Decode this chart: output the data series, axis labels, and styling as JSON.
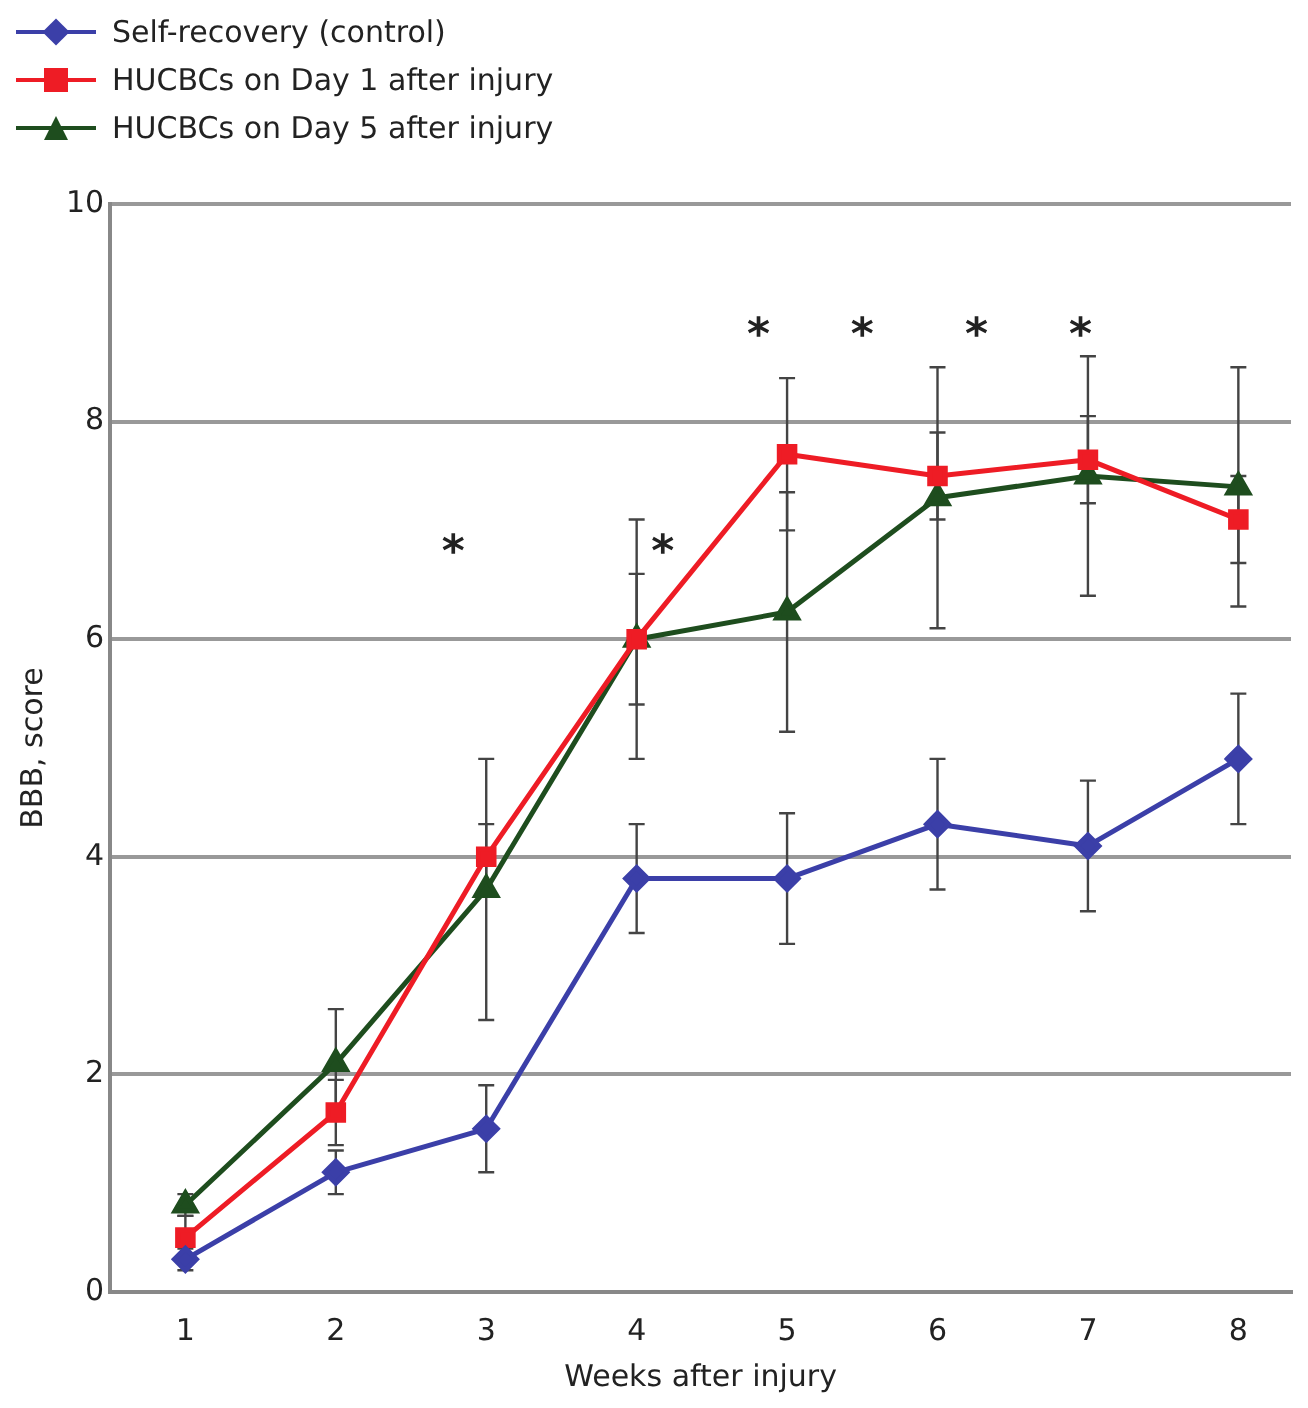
{
  "chart_data": {
    "type": "line",
    "xlabel": "Weeks after injury",
    "ylabel": "BBB, score",
    "x": [
      1,
      2,
      3,
      4,
      5,
      6,
      7,
      8
    ],
    "xlim": [
      0.5,
      8.35
    ],
    "xticks": [
      1,
      2,
      3,
      4,
      5,
      6,
      7,
      8
    ],
    "ylim": [
      0,
      10
    ],
    "yticks": [
      0,
      2,
      4,
      6,
      8,
      10
    ],
    "grid": "y",
    "legend": "top left",
    "line_style": "solid",
    "series": [
      {
        "name": "Self-recovery (control)",
        "color": "#3b3fa8",
        "marker": "diamond",
        "values": [
          0.3,
          1.1,
          1.5,
          3.8,
          3.8,
          4.3,
          4.1,
          4.9
        ],
        "errors": [
          0.1,
          0.2,
          0.4,
          0.5,
          0.6,
          0.6,
          0.6,
          0.6
        ]
      },
      {
        "name": "HUCBCs on Day 1 after injury",
        "color": "#ee1c25",
        "marker": "square",
        "values": [
          0.5,
          1.65,
          4.0,
          6.0,
          7.7,
          7.5,
          7.65,
          7.1
        ],
        "errors": [
          0.2,
          0.3,
          0.3,
          0.6,
          0.7,
          0.4,
          0.4,
          0.4
        ]
      },
      {
        "name": "HUCBCs on Day 5 after injury",
        "color": "#1e4d1e",
        "marker": "triangle",
        "values": [
          0.8,
          2.1,
          3.7,
          6.0,
          6.25,
          7.3,
          7.5,
          7.4
        ],
        "errors": [
          0.1,
          0.5,
          1.2,
          1.1,
          1.1,
          1.2,
          1.1,
          1.1
        ]
      }
    ],
    "annotations": [
      "*",
      "*",
      "*",
      "*",
      "*",
      "*"
    ]
  }
}
